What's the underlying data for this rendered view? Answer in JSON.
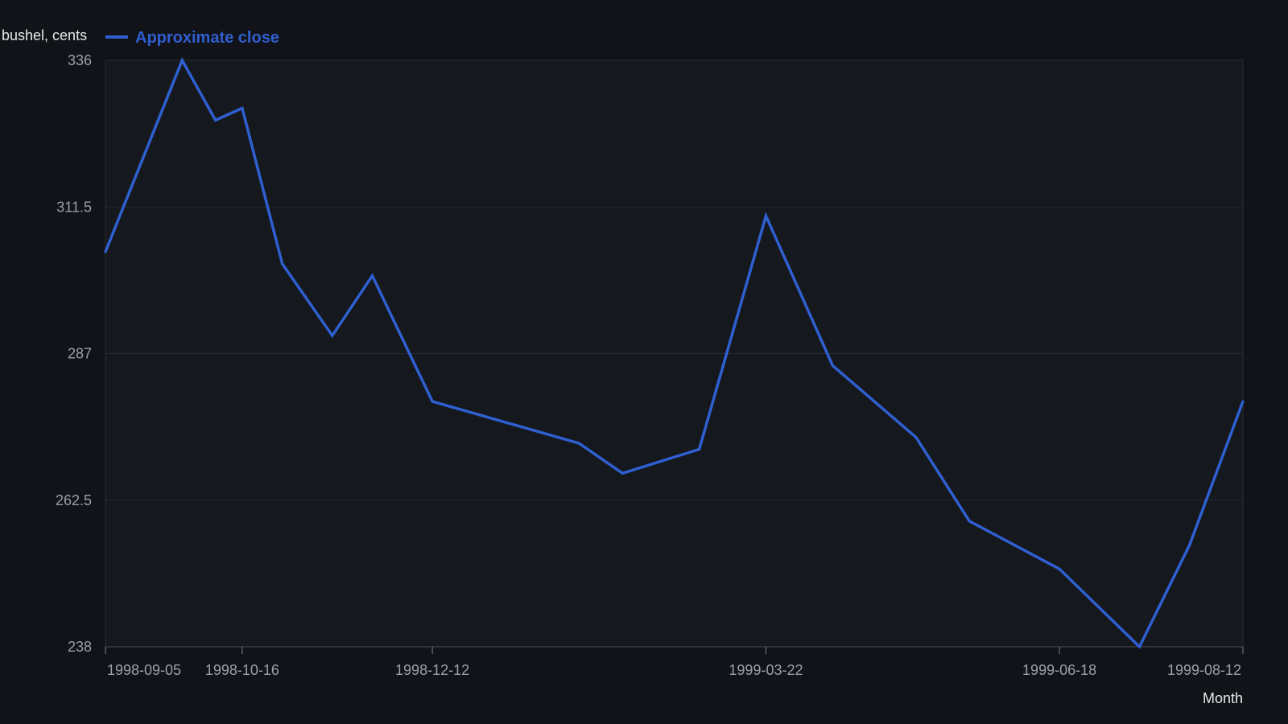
{
  "chart_data": {
    "type": "line",
    "title": "",
    "xlabel": "Month",
    "ylabel": "bushel, cents",
    "x_ticks": [
      "1998-09-05",
      "1998-10-16",
      "1998-12-12",
      "1999-03-22",
      "1999-06-18",
      "1999-08-12"
    ],
    "y_ticks": [
      "336",
      "311.5",
      "287",
      "262.5",
      "238"
    ],
    "ylim": [
      238,
      336
    ],
    "xlim": [
      "1998-09-05",
      "1999-08-12"
    ],
    "grid": true,
    "legend": "top-left",
    "series": [
      {
        "name": "Approximate close",
        "color": "#2f5fd0",
        "points": [
          {
            "x": "1998-09-05",
            "y": 304
          },
          {
            "x": "1998-09-28",
            "y": 336
          },
          {
            "x": "1998-10-08",
            "y": 326
          },
          {
            "x": "1998-10-16",
            "y": 328
          },
          {
            "x": "1998-10-28",
            "y": 302
          },
          {
            "x": "1998-11-12",
            "y": 290
          },
          {
            "x": "1998-11-24",
            "y": 300
          },
          {
            "x": "1998-12-12",
            "y": 279
          },
          {
            "x": "1999-01-25",
            "y": 272
          },
          {
            "x": "1999-02-07",
            "y": 267
          },
          {
            "x": "1999-03-02",
            "y": 271
          },
          {
            "x": "1999-03-22",
            "y": 310
          },
          {
            "x": "1999-04-11",
            "y": 285
          },
          {
            "x": "1999-05-06",
            "y": 273
          },
          {
            "x": "1999-05-22",
            "y": 259
          },
          {
            "x": "1999-06-18",
            "y": 251
          },
          {
            "x": "1999-07-12",
            "y": 238
          },
          {
            "x": "1999-07-27",
            "y": 255
          },
          {
            "x": "1999-08-12",
            "y": 279
          }
        ]
      }
    ]
  }
}
